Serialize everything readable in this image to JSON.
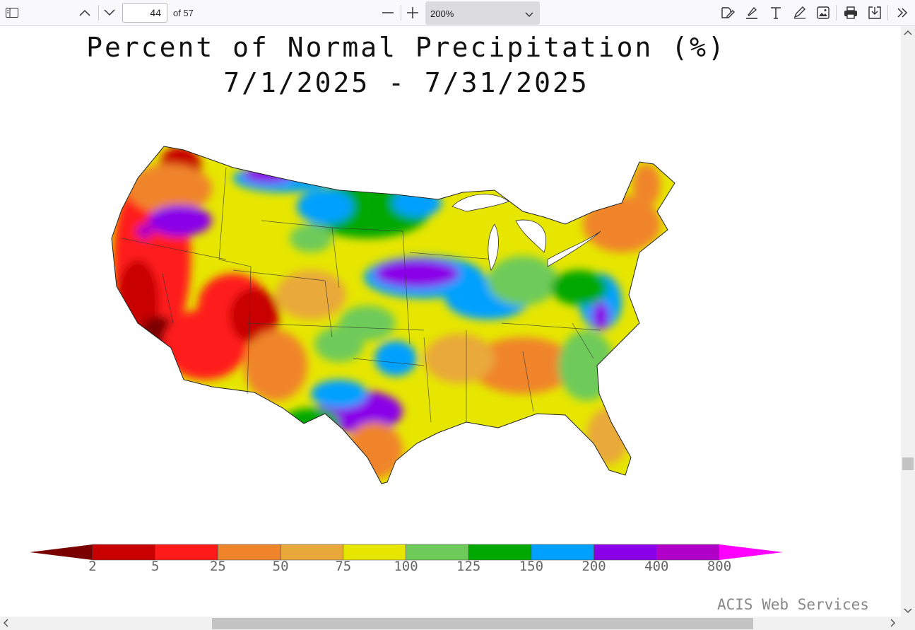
{
  "toolbar": {
    "page_current": "44",
    "page_total_label": "of 57",
    "zoom_value": "200%"
  },
  "icons": {
    "sidebar": "sidebar-toggle-icon",
    "prev": "chevron-up-icon",
    "next": "chevron-down-icon",
    "zoom_out": "minus-icon",
    "zoom_in": "plus-icon",
    "sign": "signature-icon",
    "highlight": "highlighter-icon",
    "text": "text-icon",
    "draw": "pen-icon",
    "image": "add-image-icon",
    "print": "printer-icon",
    "save": "save-download-icon",
    "more": "double-chevron-right-icon"
  },
  "map": {
    "title_line1": "Percent of Normal Precipitation (%)",
    "title_line2": "7/1/2025 - 7/31/2025",
    "credit": "ACIS Web Services",
    "legend_labels": [
      "2",
      "5",
      "25",
      "50",
      "75",
      "100",
      "125",
      "150",
      "200",
      "400",
      "800"
    ],
    "legend_colors": [
      "#7a0000",
      "#c80000",
      "#ff1a1a",
      "#f0842a",
      "#e9a93a",
      "#e6e600",
      "#6ecb5a",
      "#00a800",
      "#00a0ff",
      "#8a00e8",
      "#b000c8",
      "#ff00ff"
    ]
  }
}
